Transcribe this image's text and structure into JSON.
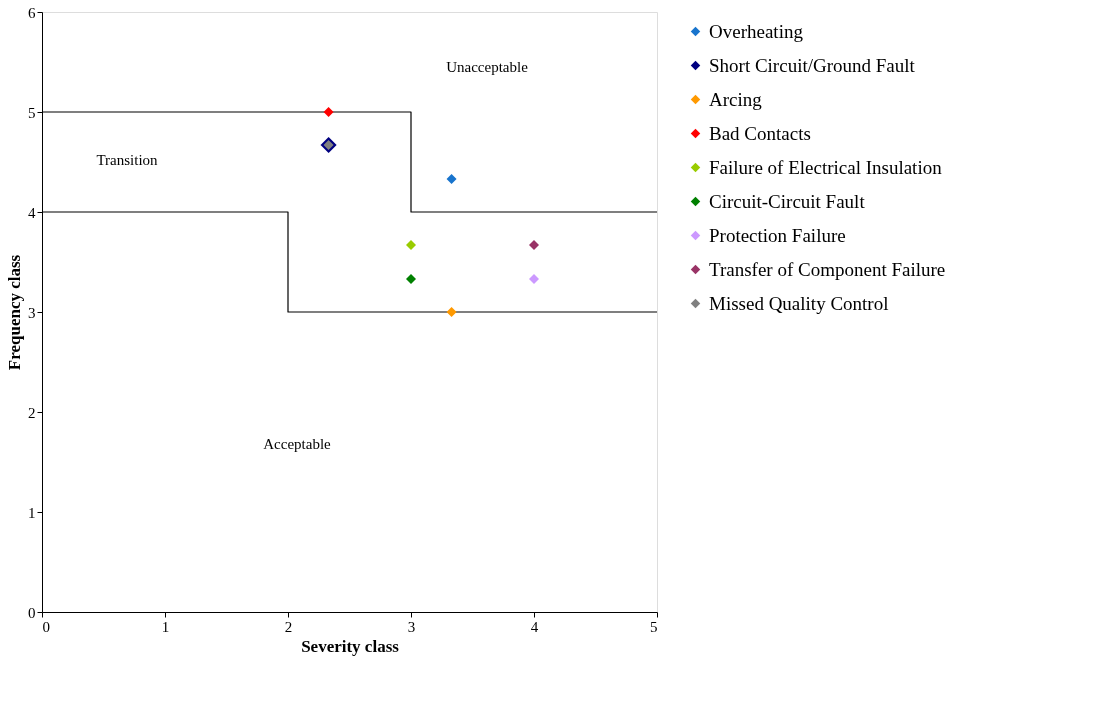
{
  "chart_data": {
    "type": "scatter",
    "xlabel": "Severity class",
    "ylabel": "Frequency class",
    "xlim": [
      0,
      5
    ],
    "ylim": [
      0,
      6
    ],
    "xticks": [
      0,
      1,
      2,
      3,
      4,
      5
    ],
    "yticks": [
      0,
      1,
      2,
      3,
      4,
      5,
      6
    ],
    "grid": false,
    "legend": "right",
    "marker": "diamond",
    "series": [
      {
        "name": "Overheating",
        "color": "#1874cd",
        "x": [
          3.33
        ],
        "values": [
          4.33
        ]
      },
      {
        "name": "Short Circuit/Ground Fault",
        "color": "#000080",
        "x": [
          2.33
        ],
        "values": [
          4.67
        ]
      },
      {
        "name": "Arcing",
        "color": "#ff9900",
        "x": [
          3.33
        ],
        "values": [
          3
        ]
      },
      {
        "name": "Bad Contacts",
        "color": "#ff0000",
        "x": [
          2.33
        ],
        "values": [
          5
        ]
      },
      {
        "name": "Failure of Electrical Insulation",
        "color": "#99cc00",
        "x": [
          3
        ],
        "values": [
          3.67
        ]
      },
      {
        "name": "Circuit-Circuit Fault",
        "color": "#008000",
        "x": [
          3
        ],
        "values": [
          3.33
        ]
      },
      {
        "name": "Protection Failure",
        "color": "#cc99ff",
        "x": [
          4
        ],
        "values": [
          3.33
        ]
      },
      {
        "name": "Transfer of Component Failure",
        "color": "#993366",
        "x": [
          4
        ],
        "values": [
          3.67
        ]
      },
      {
        "name": "Missed Quality Control",
        "color": "#808080",
        "x": [
          2.33
        ],
        "values": [
          4.67
        ]
      },
      {
        "type": "line",
        "color": "#000000",
        "marker": "none",
        "line_style": "solid",
        "x": [
          0,
          3,
          3,
          5
        ],
        "values": [
          5,
          5,
          4,
          4
        ]
      },
      {
        "type": "line",
        "color": "#000000",
        "marker": "none",
        "line_style": "solid",
        "x": [
          0,
          2,
          2,
          5
        ],
        "values": [
          4,
          4,
          3,
          3
        ]
      }
    ],
    "annotations": [
      "Unacceptable",
      "Transition",
      "Acceptable"
    ]
  }
}
